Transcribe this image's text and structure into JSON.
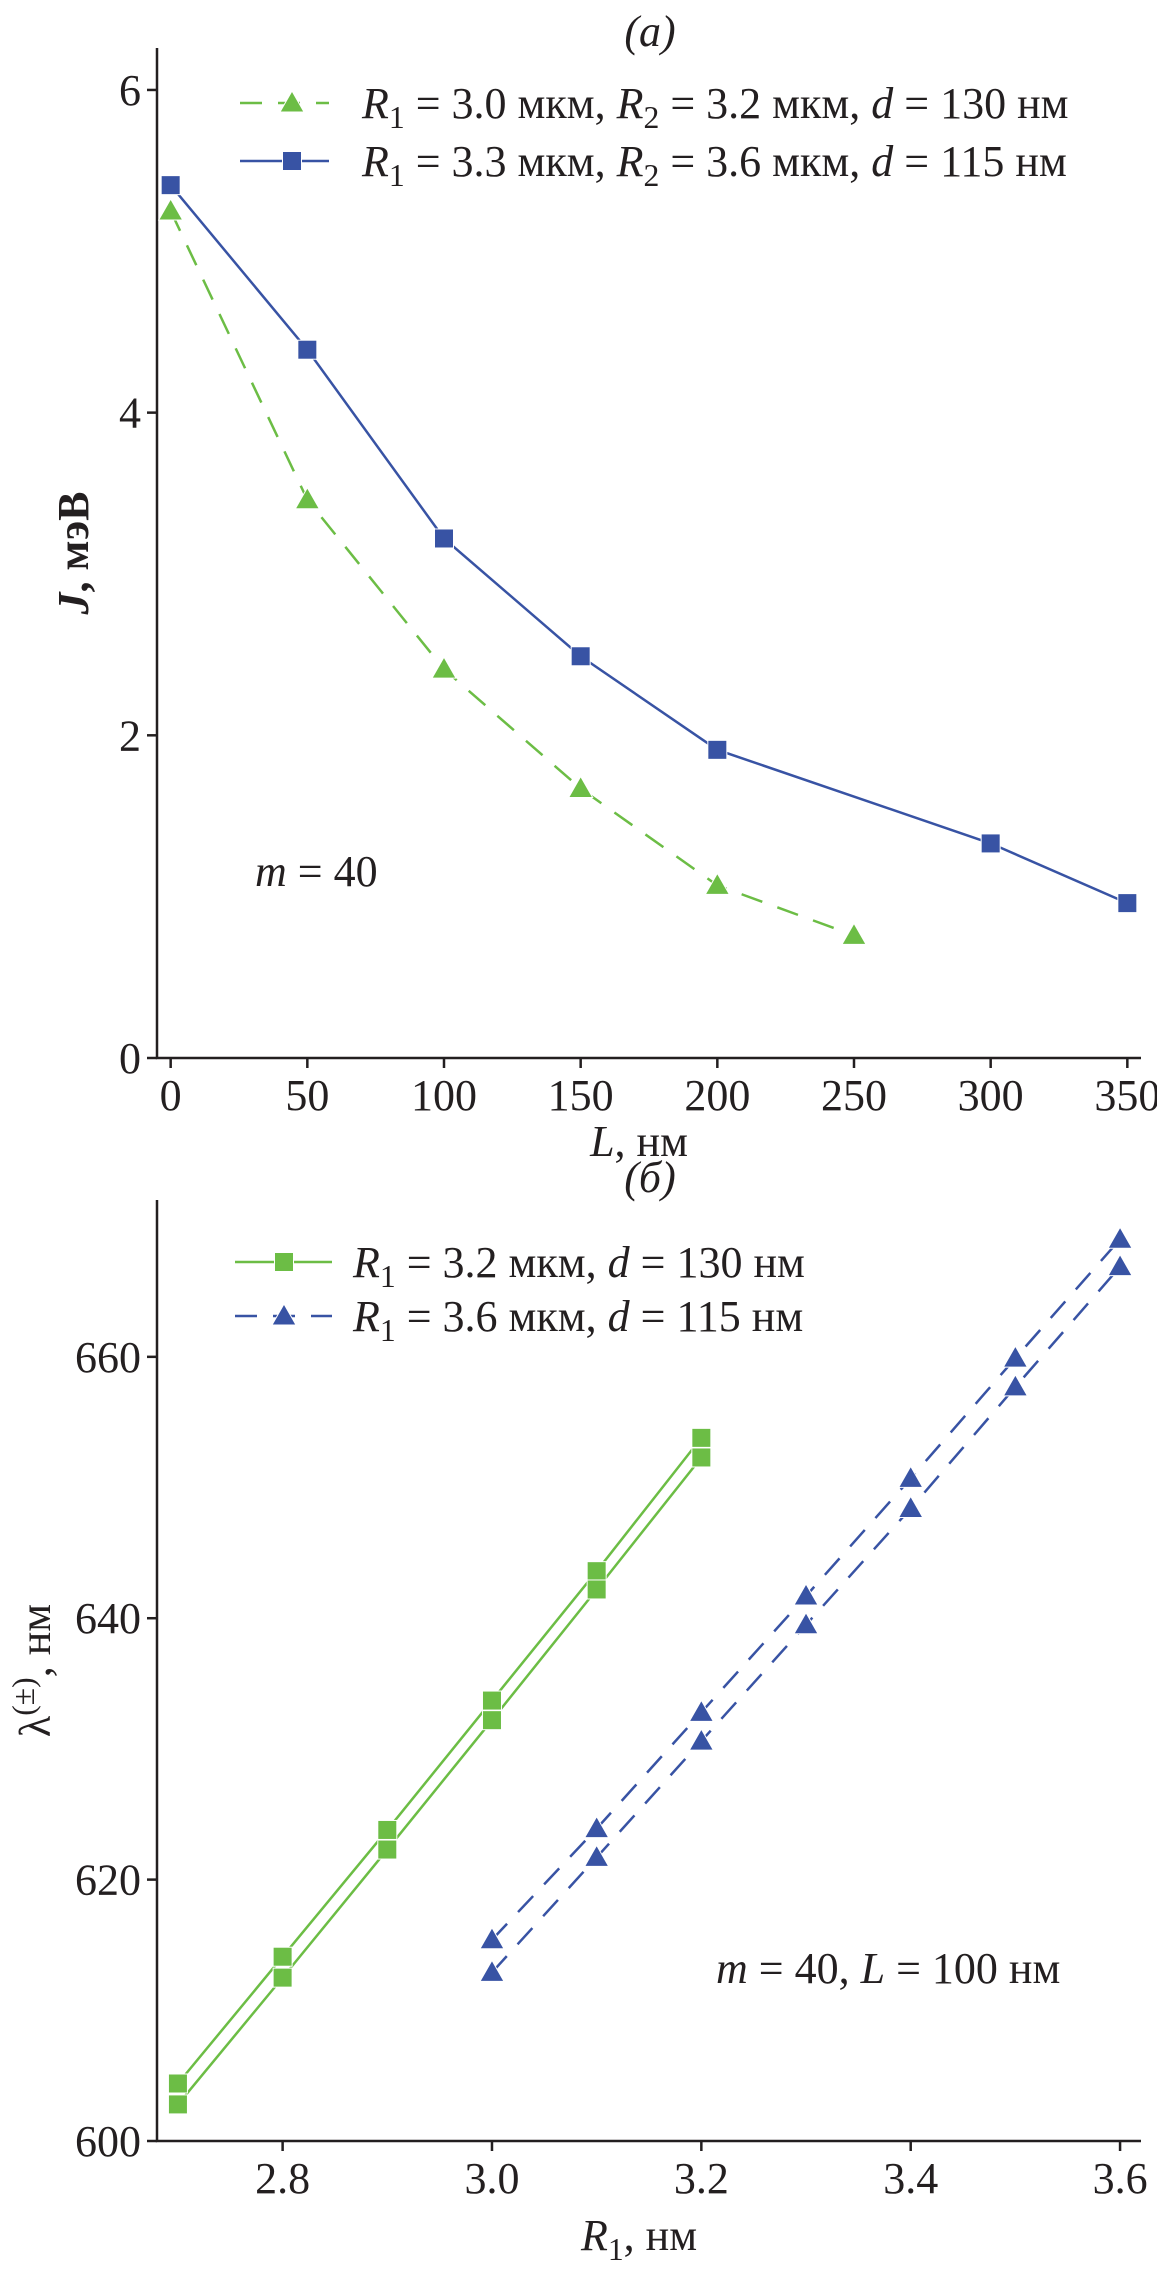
{
  "chart_data": [
    {
      "panel_label": "(a)",
      "type": "line",
      "xlabel": [
        {
          "t": "L",
          "i": true
        },
        {
          "t": ", нм"
        }
      ],
      "ylabel": [
        {
          "t": "J",
          "i": true,
          "b": true
        },
        {
          "t": ", мэВ",
          "b": true
        }
      ],
      "xlim": [
        -5,
        355
      ],
      "ylim": [
        0,
        6.26
      ],
      "xticks": [
        0,
        50,
        100,
        150,
        200,
        250,
        300,
        350
      ],
      "yticks": [
        0,
        2,
        4,
        6
      ],
      "grid": false,
      "legend_position": "top",
      "annotation": [
        {
          "t": "m",
          "i": true
        },
        {
          "t": " = 40"
        }
      ],
      "series": [
        {
          "name": [
            {
              "t": "R",
              "i": true
            },
            {
              "t": "1",
              "sub": true
            },
            {
              "t": " = 3.0 мкм, "
            },
            {
              "t": "R",
              "i": true
            },
            {
              "t": "2",
              "sub": true
            },
            {
              "t": " = 3.2 мкм, "
            },
            {
              "t": "d",
              "i": true
            },
            {
              "t": " = 130 нм"
            }
          ],
          "color": "#6cbd45",
          "marker": "triangle",
          "line": "dashed",
          "x": [
            0,
            50,
            100,
            150,
            200,
            250
          ],
          "y": [
            5.25,
            3.46,
            2.41,
            1.67,
            1.07,
            0.76
          ]
        },
        {
          "name": [
            {
              "t": "R",
              "i": true
            },
            {
              "t": "1",
              "sub": true
            },
            {
              "t": " = 3.3 мкм, "
            },
            {
              "t": "R",
              "i": true
            },
            {
              "t": "2",
              "sub": true
            },
            {
              "t": " = 3.6 мкм, "
            },
            {
              "t": "d",
              "i": true
            },
            {
              "t": " = 115 нм"
            }
          ],
          "color": "#3853a4",
          "marker": "square",
          "line": "solid",
          "x": [
            0,
            50,
            100,
            150,
            200,
            300,
            350
          ],
          "y": [
            5.41,
            4.39,
            3.22,
            2.49,
            1.91,
            1.33,
            0.96
          ]
        }
      ]
    },
    {
      "panel_label": "(б)",
      "type": "line",
      "xlabel": [
        {
          "t": "R",
          "i": true
        },
        {
          "t": "1",
          "sub": true
        },
        {
          "t": ", нм"
        }
      ],
      "ylabel": [
        {
          "t": "λ"
        },
        {
          "t": "(±)",
          "sup": true
        },
        {
          "t": ", нм"
        }
      ],
      "xlim": [
        2.68,
        3.62
      ],
      "ylim": [
        600,
        672
      ],
      "xticks": [
        2.8,
        3.0,
        3.2,
        3.4,
        3.6
      ],
      "xtick_labels": [
        "2.8",
        "3.0",
        "3.2",
        "3.4",
        "3.6"
      ],
      "yticks": [
        600,
        620,
        640,
        660
      ],
      "grid": false,
      "legend_position": "top-left",
      "annotation": [
        {
          "t": "m",
          "i": true
        },
        {
          "t": " = 40, "
        },
        {
          "t": "L",
          "i": true
        },
        {
          "t": " = 100 нм"
        }
      ],
      "series": [
        {
          "name": [
            {
              "t": "R",
              "i": true
            },
            {
              "t": "1",
              "sub": true
            },
            {
              "t": " = 3.2 мкм, "
            },
            {
              "t": "d",
              "i": true
            },
            {
              "t": " = 130 нм"
            }
          ],
          "color": "#6cbd45",
          "marker": "square",
          "line": "solid",
          "x": [
            2.7,
            2.8,
            2.9,
            3.0,
            3.1,
            3.2
          ],
          "y_plus": [
            604.4,
            614.1,
            623.8,
            633.7,
            643.6,
            653.8
          ],
          "y_minus": [
            602.8,
            612.5,
            622.3,
            632.2,
            642.2,
            652.3
          ]
        },
        {
          "name": [
            {
              "t": "R",
              "i": true
            },
            {
              "t": "1",
              "sub": true
            },
            {
              "t": " = 3.6 мкм, "
            },
            {
              "t": "d",
              "i": true
            },
            {
              "t": " = 115 нм"
            }
          ],
          "color": "#3853a4",
          "marker": "triangle",
          "line": "dashed",
          "x": [
            3.0,
            3.1,
            3.2,
            3.3,
            3.4,
            3.5,
            3.6
          ],
          "y_plus": [
            615.4,
            623.9,
            632.8,
            641.7,
            650.7,
            659.9,
            669.0
          ],
          "y_minus": [
            612.9,
            621.7,
            630.6,
            639.5,
            648.4,
            657.7,
            666.9
          ]
        }
      ]
    }
  ]
}
